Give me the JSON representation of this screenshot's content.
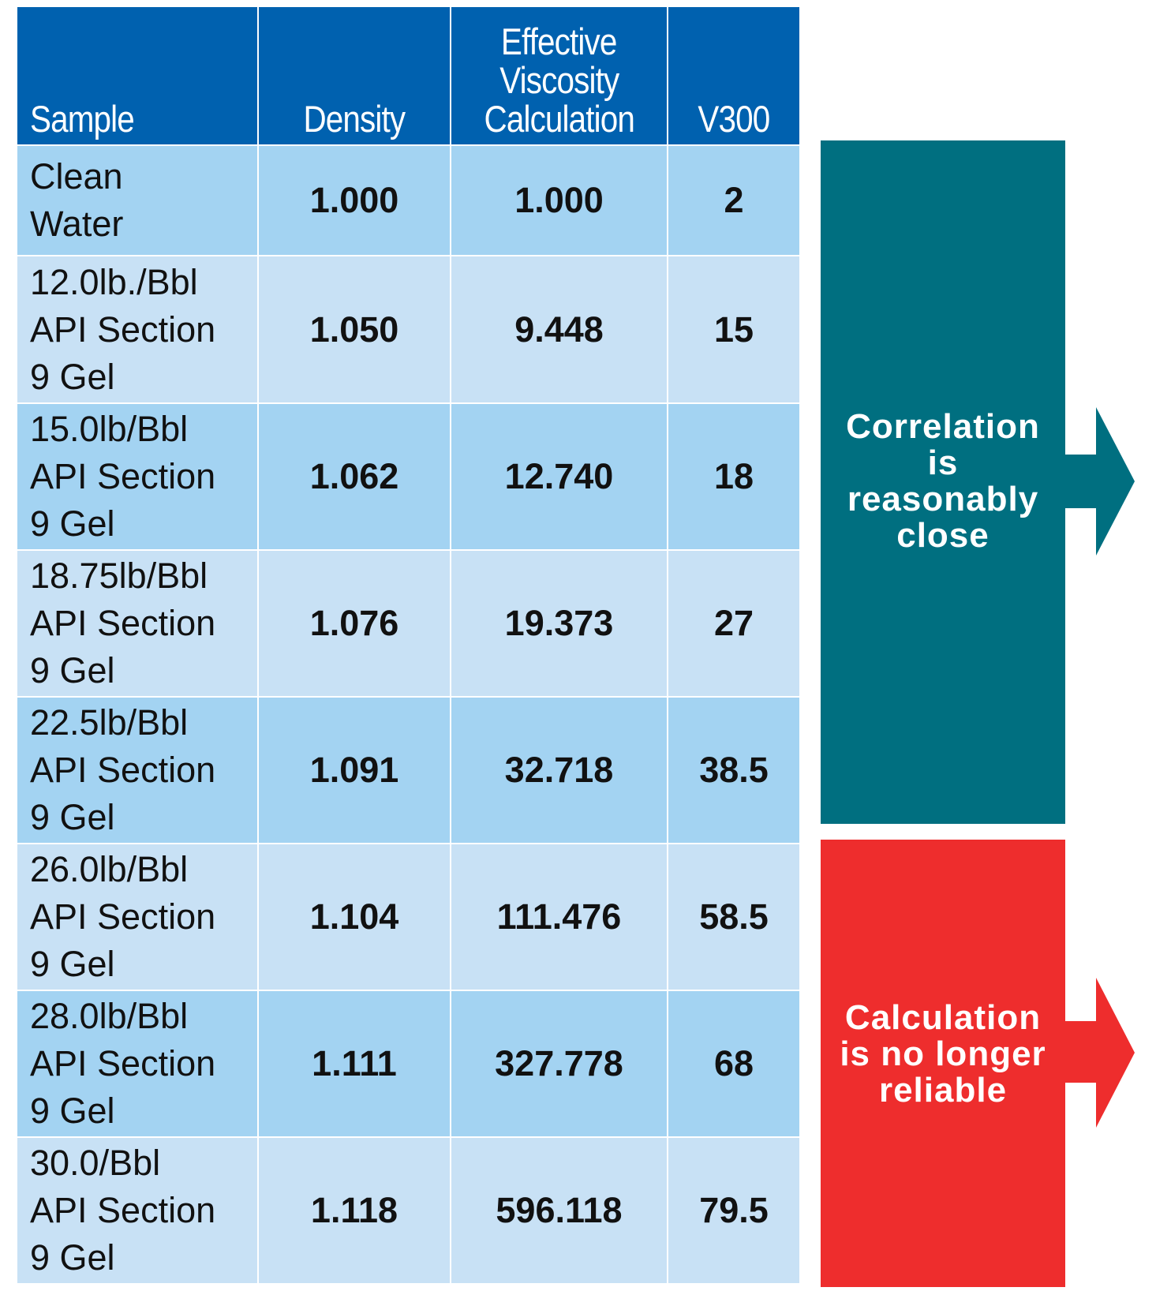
{
  "chart_data": {
    "type": "table",
    "columns": [
      "Sample",
      "Density",
      "Effective Viscosity Calculation",
      "V300"
    ],
    "rows": [
      {
        "sample": "Clean\nWater",
        "density": "1.000",
        "viscosity": "1.000",
        "v300": "2"
      },
      {
        "sample": "12.0lb./Bbl\nAPI Section\n9 Gel",
        "density": "1.050",
        "viscosity": "9.448",
        "v300": "15"
      },
      {
        "sample": "15.0lb/Bbl\nAPI Section\n9 Gel",
        "density": "1.062",
        "viscosity": "12.740",
        "v300": "18"
      },
      {
        "sample": "18.75lb/Bbl\nAPI Section\n9 Gel",
        "density": "1.076",
        "viscosity": "19.373",
        "v300": "27"
      },
      {
        "sample": "22.5lb/Bbl\nAPI Section\n9 Gel",
        "density": "1.091",
        "viscosity": "32.718",
        "v300": "38.5"
      },
      {
        "sample": "26.0lb/Bbl\nAPI Section\n9 Gel",
        "density": "1.104",
        "viscosity": "111.476",
        "v300": "58.5"
      },
      {
        "sample": "28.0lb/Bbl\nAPI Section\n9 Gel",
        "density": "1.111",
        "viscosity": "327.778",
        "v300": "68"
      },
      {
        "sample": "30.0/Bbl\nAPI Section\n9 Gel",
        "density": "1.118",
        "viscosity": "596.118",
        "v300": "79.5"
      }
    ]
  },
  "header": {
    "sample": "Sample",
    "density": "Density",
    "viscosity_lines": [
      "Effective",
      "Viscosity",
      "Calculation"
    ],
    "v300": "V300"
  },
  "callouts": {
    "close": {
      "lines": [
        "Correlation",
        "is",
        "reasonably",
        "close"
      ],
      "color": "#006f80"
    },
    "unreliable": {
      "lines": [
        "Calculation",
        "is no longer",
        "reliable"
      ],
      "color": "#ee2d2d"
    }
  },
  "colors": {
    "header_bg": "#0061af",
    "row_dark": "#a3d3f2",
    "row_light": "#c8e1f5"
  }
}
